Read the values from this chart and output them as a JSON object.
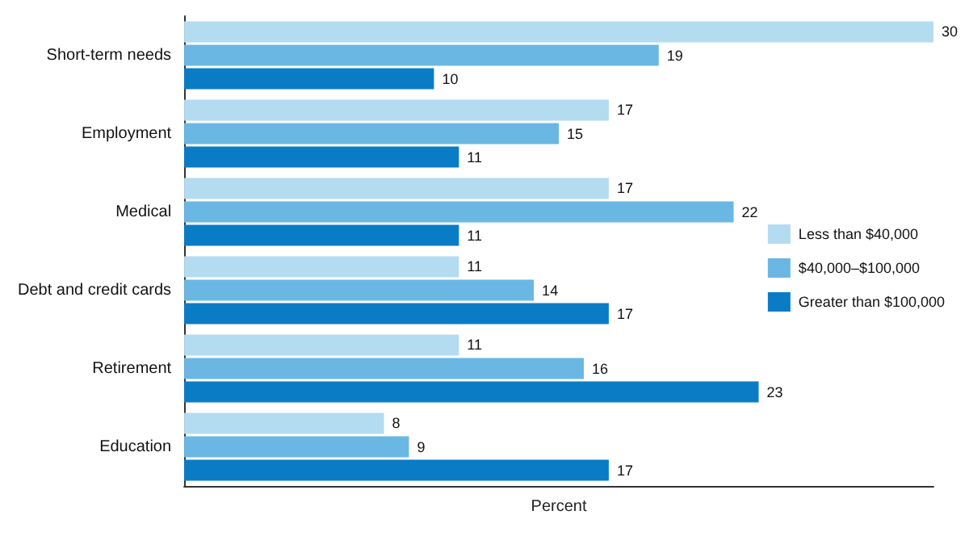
{
  "chart_data": {
    "type": "bar",
    "orientation": "horizontal",
    "xlabel": "Percent",
    "categories": [
      "Short-term needs",
      "Employment",
      "Medical",
      "Debt and credit cards",
      "Retirement",
      "Education"
    ],
    "series": [
      {
        "name": "Less than $40,000",
        "color": "#b3dcf1",
        "values": [
          30,
          17,
          17,
          11,
          11,
          8
        ]
      },
      {
        "name": "$40,000–$100,000",
        "color": "#6bb7e4",
        "values": [
          19,
          15,
          22,
          14,
          16,
          9
        ]
      },
      {
        "name": "Greater than $100,000",
        "color": "#0a7cc6",
        "values": [
          10,
          11,
          11,
          17,
          23,
          17
        ]
      }
    ],
    "xlim": [
      0,
      30
    ],
    "tick_labels": "y",
    "data_labels": true,
    "grid": false,
    "legend": "right"
  }
}
